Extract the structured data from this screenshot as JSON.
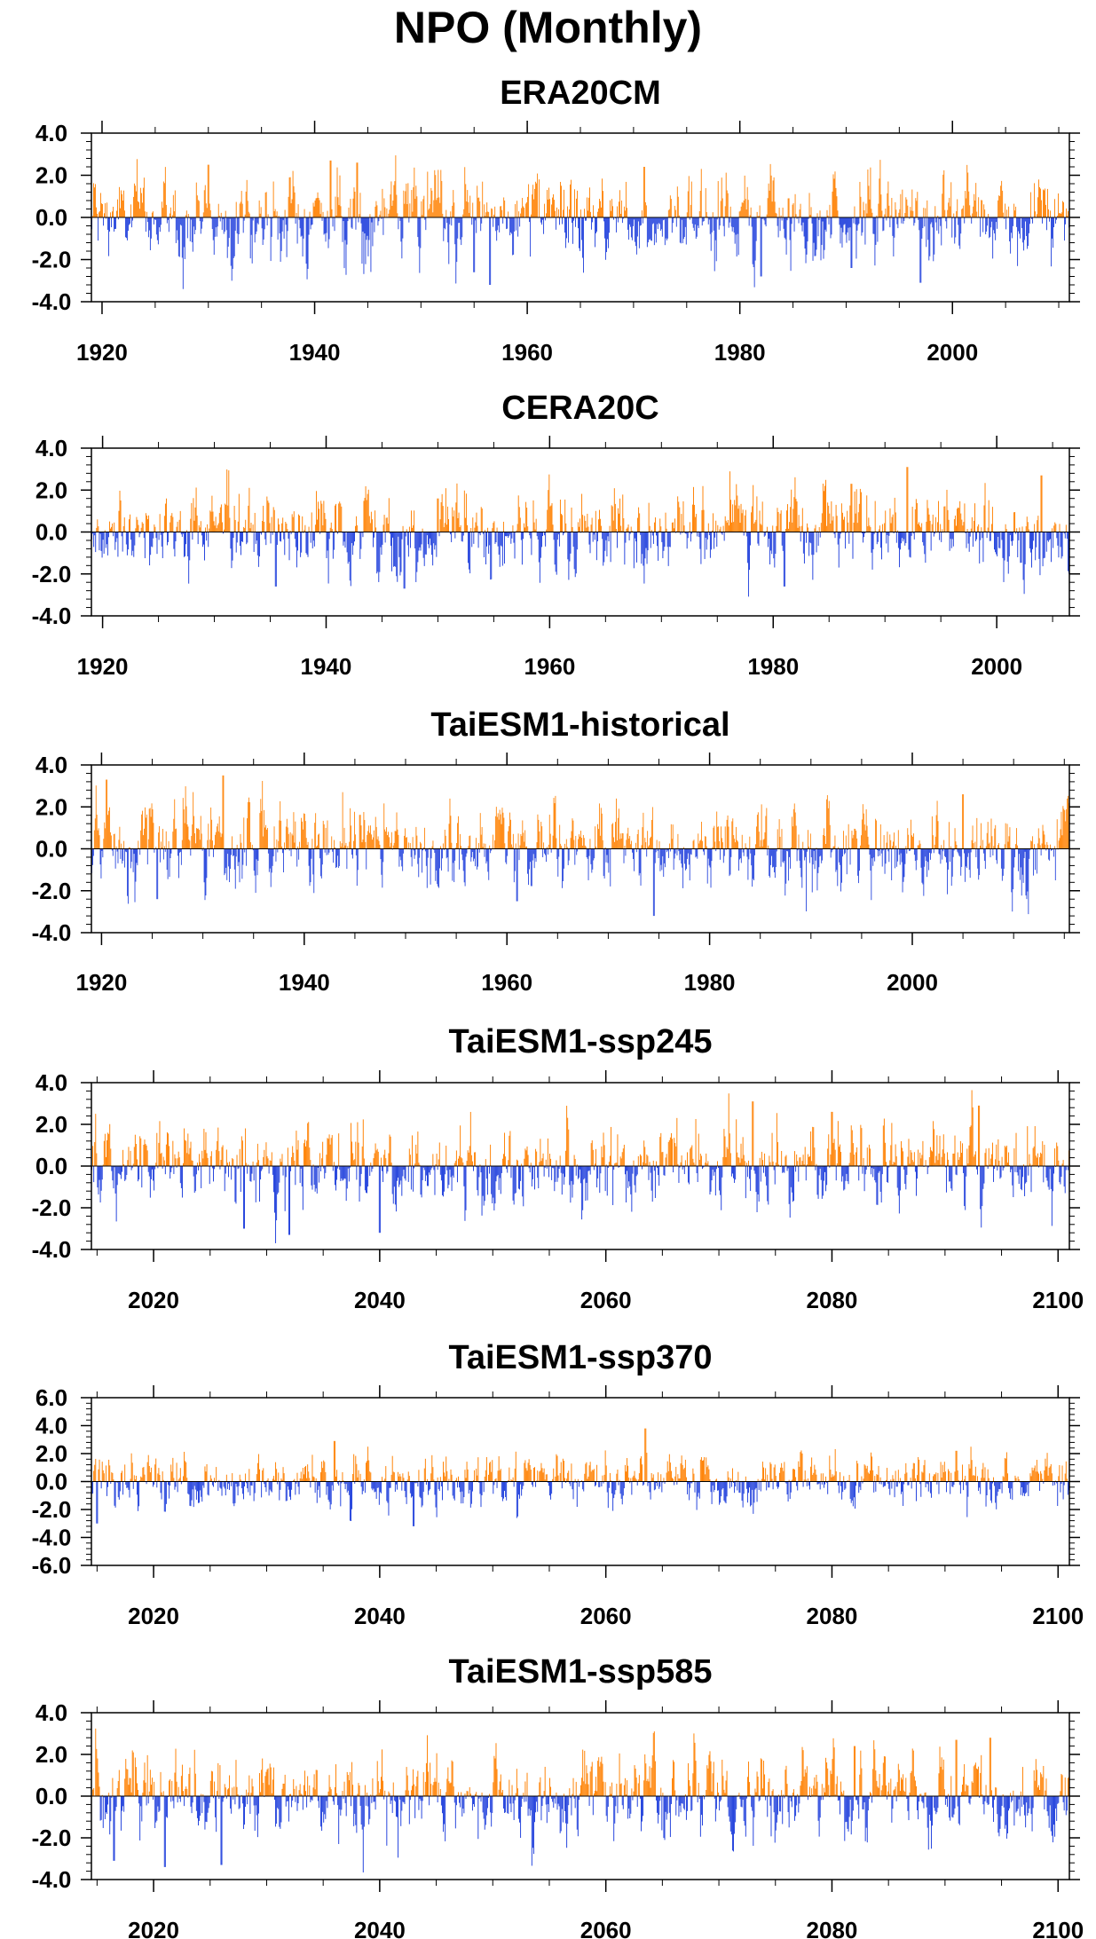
{
  "title": "NPO (Monthly)",
  "colors": {
    "positive": "#ff8000",
    "negative": "#1f3fdc",
    "axis": "#000000"
  },
  "chart_data": [
    {
      "type": "bar",
      "title": "ERA20CM",
      "xlim": [
        1919,
        2011
      ],
      "ylim": [
        -4,
        4
      ],
      "xticks": [
        1920,
        1940,
        1960,
        1980,
        2000
      ],
      "yticks": [
        -4,
        -2,
        0,
        2,
        4
      ],
      "xticklabels": [
        "1920",
        "1940",
        "1960",
        "1980",
        "2000"
      ],
      "yticklabels": [
        "-4.0",
        "-2.0",
        "0.0",
        "2.0",
        "4.0"
      ],
      "peaks": [
        [
          1930,
          2.5
        ],
        [
          1941.5,
          2.7
        ],
        [
          1944,
          2.6
        ],
        [
          1955,
          -2.6
        ],
        [
          1956.5,
          -3.2
        ],
        [
          1971,
          2.4
        ],
        [
          1982,
          -2.8
        ],
        [
          1997,
          -3.1
        ],
        [
          1990.5,
          -2.4
        ]
      ]
    },
    {
      "type": "bar",
      "title": "CERA20C",
      "xlim": [
        1919,
        2006.5
      ],
      "ylim": [
        -4,
        4
      ],
      "xticks": [
        1920,
        1940,
        1960,
        1980,
        2000
      ],
      "yticks": [
        -4,
        -2,
        0,
        2,
        4
      ],
      "xticklabels": [
        "1920",
        "1940",
        "1960",
        "1980",
        "2000"
      ],
      "yticklabels": [
        "-4.0",
        "-2.0",
        "0.0",
        "2.0",
        "4.0"
      ],
      "peaks": [
        [
          1935.5,
          -2.6
        ],
        [
          1947,
          -2.7
        ],
        [
          1950,
          1.6
        ],
        [
          1981,
          -2.6
        ],
        [
          1987,
          2.3
        ],
        [
          1992,
          3.1
        ],
        [
          2004,
          2.7
        ]
      ]
    },
    {
      "type": "bar",
      "title": "TaiESM1-historical",
      "xlim": [
        1919,
        2015.5
      ],
      "ylim": [
        -4,
        4
      ],
      "xticks": [
        1920,
        1940,
        1960,
        1980,
        2000
      ],
      "yticks": [
        -4,
        -2,
        0,
        2,
        4
      ],
      "xticklabels": [
        "1920",
        "1940",
        "1960",
        "1980",
        "2000"
      ],
      "yticklabels": [
        "-4.0",
        "-2.0",
        "0.0",
        "2.0",
        "4.0"
      ],
      "peaks": [
        [
          1920.5,
          3.3
        ],
        [
          1932,
          3.5
        ],
        [
          1925.5,
          -2.4
        ],
        [
          1961,
          -2.5
        ],
        [
          1974.5,
          -3.2
        ],
        [
          2005,
          2.6
        ]
      ]
    },
    {
      "type": "bar",
      "title": "TaiESM1-ssp245",
      "xlim": [
        2014.5,
        2101
      ],
      "ylim": [
        -4,
        4
      ],
      "xticks": [
        2020,
        2040,
        2060,
        2080,
        2100
      ],
      "yticks": [
        -4,
        -2,
        0,
        2,
        4
      ],
      "xticklabels": [
        "2020",
        "2040",
        "2060",
        "2080",
        "2100"
      ],
      "yticklabels": [
        "-4.0",
        "-2.0",
        "0.0",
        "2.0",
        "4.0"
      ],
      "peaks": [
        [
          2028,
          -3.0
        ],
        [
          2032,
          -3.3
        ],
        [
          2040,
          -3.2
        ],
        [
          2073,
          3.1
        ],
        [
          2080,
          2.6
        ],
        [
          2093,
          2.9
        ]
      ]
    },
    {
      "type": "bar",
      "title": "TaiESM1-ssp370",
      "xlim": [
        2014.5,
        2101
      ],
      "ylim": [
        -6,
        6
      ],
      "xticks": [
        2020,
        2040,
        2060,
        2080,
        2100
      ],
      "yticks": [
        -6,
        -4,
        -2,
        0,
        2,
        4,
        6
      ],
      "xticklabels": [
        "2020",
        "2040",
        "2060",
        "2080",
        "2100"
      ],
      "yticklabels": [
        "-6.0",
        "-4.0",
        "-2.0",
        "0.0",
        "2.0",
        "4.0",
        "6.0"
      ],
      "peaks": [
        [
          2015,
          -3.0
        ],
        [
          2036,
          2.9
        ],
        [
          2043,
          -3.2
        ],
        [
          2063.5,
          3.8
        ],
        [
          2091,
          2.2
        ]
      ]
    },
    {
      "type": "bar",
      "title": "TaiESM1-ssp585",
      "xlim": [
        2014.5,
        2101
      ],
      "ylim": [
        -4,
        4
      ],
      "xticks": [
        2020,
        2040,
        2060,
        2080,
        2100
      ],
      "yticks": [
        -4,
        -2,
        0,
        2,
        4
      ],
      "xticklabels": [
        "2020",
        "2040",
        "2060",
        "2080",
        "2100"
      ],
      "yticklabels": [
        "-4.0",
        "-2.0",
        "0.0",
        "2.0",
        "4.0"
      ],
      "peaks": [
        [
          2016.5,
          -3.1
        ],
        [
          2021,
          -3.4
        ],
        [
          2026,
          -3.3
        ],
        [
          2082,
          2.4
        ],
        [
          2091,
          2.7
        ],
        [
          2094,
          2.8
        ]
      ]
    }
  ]
}
